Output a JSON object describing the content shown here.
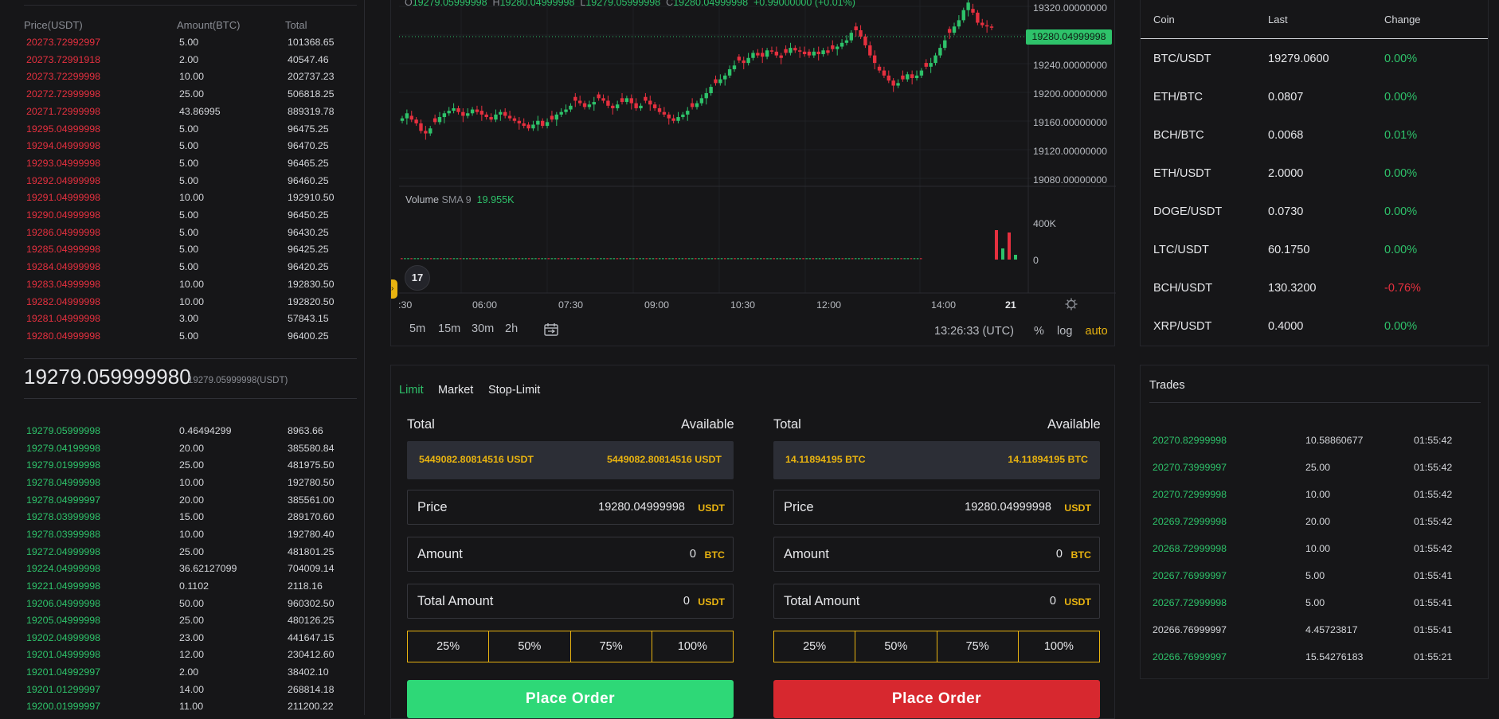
{
  "orderbook": {
    "headers": {
      "price": "Price(USDT)",
      "amount": "Amount(BTC)",
      "total": "Total"
    },
    "asks": [
      {
        "price": "20273.72992997",
        "amount": "5.00",
        "total": "101368.65"
      },
      {
        "price": "20273.72991918",
        "amount": "2.00",
        "total": "40547.46"
      },
      {
        "price": "20273.72299998",
        "amount": "10.00",
        "total": "202737.23"
      },
      {
        "price": "20272.72999998",
        "amount": "25.00",
        "total": "506818.25"
      },
      {
        "price": "20271.72999998",
        "amount": "43.86995",
        "total": "889319.78"
      },
      {
        "price": "19295.04999998",
        "amount": "5.00",
        "total": "96475.25"
      },
      {
        "price": "19294.04999998",
        "amount": "5.00",
        "total": "96470.25"
      },
      {
        "price": "19293.04999998",
        "amount": "5.00",
        "total": "96465.25"
      },
      {
        "price": "19292.04999998",
        "amount": "5.00",
        "total": "96460.25"
      },
      {
        "price": "19291.04999998",
        "amount": "10.00",
        "total": "192910.50"
      },
      {
        "price": "19290.04999998",
        "amount": "5.00",
        "total": "96450.25"
      },
      {
        "price": "19286.04999998",
        "amount": "5.00",
        "total": "96430.25"
      },
      {
        "price": "19285.04999998",
        "amount": "5.00",
        "total": "96425.25"
      },
      {
        "price": "19284.04999998",
        "amount": "5.00",
        "total": "96420.25"
      },
      {
        "price": "19283.04999998",
        "amount": "10.00",
        "total": "192830.50"
      },
      {
        "price": "19282.04999998",
        "amount": "10.00",
        "total": "192820.50"
      },
      {
        "price": "19281.04999998",
        "amount": "3.00",
        "total": "57843.15"
      },
      {
        "price": "19280.04999998",
        "amount": "5.00",
        "total": "96400.25"
      }
    ],
    "last_price": "19279.059999980",
    "last_price_sub": "19279.05999998(USDT)",
    "bids": [
      {
        "price": "19279.05999998",
        "amount": "0.46494299",
        "total": "8963.66"
      },
      {
        "price": "19279.04199998",
        "amount": "20.00",
        "total": "385580.84"
      },
      {
        "price": "19279.01999998",
        "amount": "25.00",
        "total": "481975.50"
      },
      {
        "price": "19278.04999998",
        "amount": "10.00",
        "total": "192780.50"
      },
      {
        "price": "19278.04999997",
        "amount": "20.00",
        "total": "385561.00"
      },
      {
        "price": "19278.03999998",
        "amount": "15.00",
        "total": "289170.60"
      },
      {
        "price": "19278.03999988",
        "amount": "10.00",
        "total": "192780.40"
      },
      {
        "price": "19272.04999998",
        "amount": "25.00",
        "total": "481801.25"
      },
      {
        "price": "19224.04999998",
        "amount": "36.62127099",
        "total": "704009.14"
      },
      {
        "price": "19221.04999998",
        "amount": "0.1102",
        "total": "2118.16"
      },
      {
        "price": "19206.04999998",
        "amount": "50.00",
        "total": "960302.50"
      },
      {
        "price": "19205.04999998",
        "amount": "25.00",
        "total": "480126.25"
      },
      {
        "price": "19202.04999998",
        "amount": "23.00",
        "total": "441647.15"
      },
      {
        "price": "19201.04999998",
        "amount": "12.00",
        "total": "230412.60"
      },
      {
        "price": "19201.04992997",
        "amount": "2.00",
        "total": "38402.10"
      },
      {
        "price": "19201.01299997",
        "amount": "14.00",
        "total": "268814.18"
      },
      {
        "price": "19200.01999997",
        "amount": "11.00",
        "total": "211200.22"
      }
    ]
  },
  "chart": {
    "ohlc": {
      "o": "19279.05999998",
      "h": "19280.04999998",
      "l": "19279.05999998",
      "c": "19280.04999998",
      "change": "+0.99000000 (+0.01%)"
    },
    "y_ticks": [
      "19320.00000000",
      "19280.00000000",
      "19240.00000000",
      "19200.00000000",
      "19160.00000000",
      "19120.00000000",
      "19080.00000000"
    ],
    "price_tag": "19280.04999998",
    "volume_label": "Volume",
    "volume_sma": "SMA 9",
    "volume_value": "19.955K",
    "volume_ticks": [
      "400K",
      "0"
    ],
    "x_ticks": [
      ":30",
      "06:00",
      "07:30",
      "09:00",
      "10:30",
      "12:00",
      "14:00",
      "21"
    ],
    "logo": "17",
    "timeframes": [
      "5m",
      "15m",
      "30m",
      "2h"
    ],
    "clock": "13:26:33 (UTC)",
    "scale": {
      "percent": "%",
      "log": "log",
      "auto": "auto"
    },
    "colors": {
      "up": "#2ec26a",
      "down": "#e5303f"
    },
    "series_shape": [
      30,
      34,
      29,
      26,
      20,
      18,
      22,
      27,
      31,
      34,
      36,
      38,
      35,
      32,
      34,
      37,
      35,
      33,
      31,
      29,
      33,
      35,
      32,
      30,
      28,
      26,
      24,
      22,
      25,
      28,
      24,
      27,
      29,
      33,
      35,
      37,
      40,
      44,
      42,
      39,
      41,
      43,
      46,
      44,
      40,
      38,
      41,
      43,
      46,
      42,
      38,
      40,
      44,
      41,
      38,
      35,
      33,
      30,
      28,
      31,
      33,
      36,
      39,
      42,
      46,
      50,
      55,
      58,
      61,
      64,
      69,
      72,
      76,
      74,
      78,
      82,
      80,
      79,
      84,
      83,
      80,
      78,
      82,
      86,
      84,
      83,
      81,
      80,
      83,
      81,
      84,
      82,
      85,
      87,
      90,
      92,
      98,
      100,
      95,
      88,
      80,
      74,
      68,
      64,
      60,
      56,
      58,
      61,
      65,
      62,
      64,
      68,
      71,
      74,
      80,
      86,
      92,
      98,
      103,
      108,
      116,
      122,
      114,
      106,
      104,
      103,
      102
    ]
  },
  "coins": {
    "headers": {
      "coin": "Coin",
      "last": "Last",
      "change": "Change"
    },
    "rows": [
      {
        "coin": "BTC/USDT",
        "last": "19279.0600",
        "change": "0.00%",
        "dir": "up"
      },
      {
        "coin": "ETH/BTC",
        "last": "0.0807",
        "change": "0.00%",
        "dir": "up"
      },
      {
        "coin": "BCH/BTC",
        "last": "0.0068",
        "change": "0.01%",
        "dir": "up"
      },
      {
        "coin": "ETH/USDT",
        "last": "2.0000",
        "change": "0.00%",
        "dir": "up"
      },
      {
        "coin": "DOGE/USDT",
        "last": "0.0730",
        "change": "0.00%",
        "dir": "up"
      },
      {
        "coin": "LTC/USDT",
        "last": "60.1750",
        "change": "0.00%",
        "dir": "up"
      },
      {
        "coin": "BCH/USDT",
        "last": "130.3200",
        "change": "-0.76%",
        "dir": "down"
      },
      {
        "coin": "XRP/USDT",
        "last": "0.4000",
        "change": "0.00%",
        "dir": "up"
      }
    ]
  },
  "order_form": {
    "tabs": [
      "Limit",
      "Market",
      "Stop-Limit"
    ],
    "active_tab": "Limit",
    "buy": {
      "total_label": "Total",
      "available_label": "Available",
      "total_value": "5449082.80814516 USDT",
      "available_value": "5449082.80814516 USDT",
      "price_label": "Price",
      "price_value": "19280.04999998",
      "price_unit": "USDT",
      "amount_label": "Amount",
      "amount_value": "0",
      "amount_unit": "BTC",
      "total_amount_label": "Total Amount",
      "total_amount_value": "0",
      "total_amount_unit": "USDT",
      "percents": [
        "25%",
        "50%",
        "75%",
        "100%"
      ],
      "button": "Place Order"
    },
    "sell": {
      "total_label": "Total",
      "available_label": "Available",
      "total_value": "14.11894195 BTC",
      "available_value": "14.11894195 BTC",
      "price_label": "Price",
      "price_value": "19280.04999998",
      "price_unit": "USDT",
      "amount_label": "Amount",
      "amount_value": "0",
      "amount_unit": "BTC",
      "total_amount_label": "Total Amount",
      "total_amount_value": "0",
      "total_amount_unit": "USDT",
      "percents": [
        "25%",
        "50%",
        "75%",
        "100%"
      ],
      "button": "Place Order"
    }
  },
  "trades": {
    "title": "Trades",
    "rows": [
      {
        "price": "20270.82999998",
        "amount": "10.58860677",
        "time": "01:55:42",
        "side": "buy"
      },
      {
        "price": "20270.73999997",
        "amount": "25.00",
        "time": "01:55:42",
        "side": "buy"
      },
      {
        "price": "20270.72999998",
        "amount": "10.00",
        "time": "01:55:42",
        "side": "buy"
      },
      {
        "price": "20269.72999998",
        "amount": "20.00",
        "time": "01:55:42",
        "side": "buy"
      },
      {
        "price": "20268.72999998",
        "amount": "10.00",
        "time": "01:55:42",
        "side": "buy"
      },
      {
        "price": "20267.76999997",
        "amount": "5.00",
        "time": "01:55:41",
        "side": "buy"
      },
      {
        "price": "20267.72999998",
        "amount": "5.00",
        "time": "01:55:41",
        "side": "buy"
      },
      {
        "price": "20266.76999997",
        "amount": "4.45723817",
        "time": "01:55:41",
        "side": "neutral"
      },
      {
        "price": "20266.76999997",
        "amount": "15.54276183",
        "time": "01:55:21",
        "side": "buy"
      }
    ]
  }
}
